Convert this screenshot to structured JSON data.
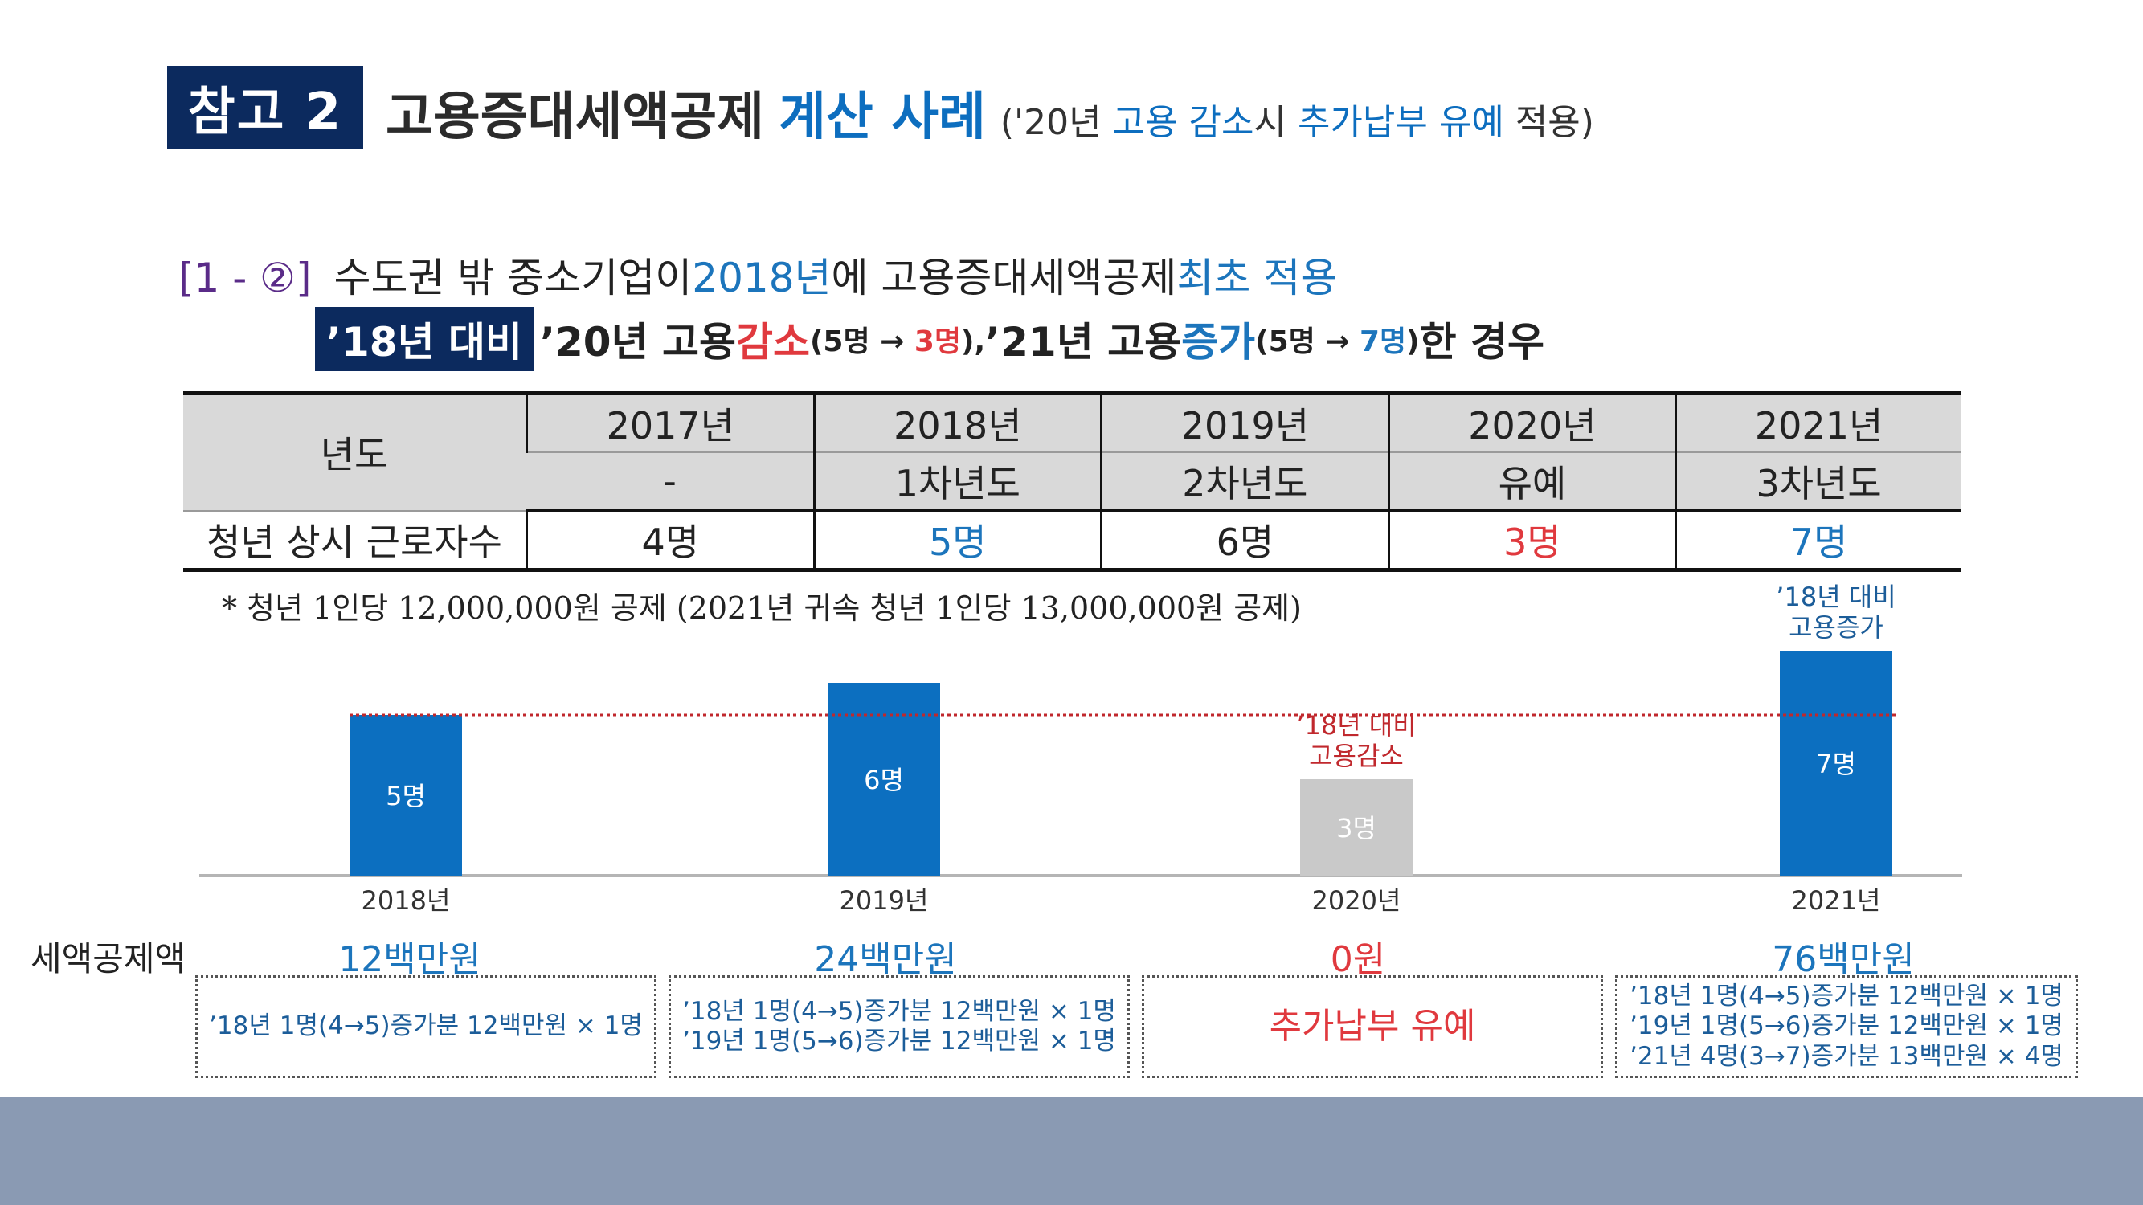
{
  "title": {
    "badge": "참고 2",
    "main": "고용증대세액공제",
    "highlight": "계산 사례",
    "sub_open": "('20년 ",
    "sub_blue1": "고용 감소",
    "sub_mid": "시 ",
    "sub_blue2": "추가납부 유예",
    "sub_close": " 적용)"
  },
  "case": {
    "num": "[1 - ②]",
    "t1": "수도권 밖 중소기업이 ",
    "year": "2018년",
    "t2": "에 고용증대세액공제 ",
    "first": "최초 적용"
  },
  "condition": {
    "badge": "’18년 대비",
    "t1": "’20년 고용 ",
    "dec": "감소",
    "dec_detail_a": "(5명 → ",
    "dec_detail_b": "3명",
    "dec_detail_c": "),",
    "t2": " ’21년 고용 ",
    "inc": "증가",
    "inc_detail_a": "(5명 → ",
    "inc_detail_b": "7명",
    "inc_detail_c": ")",
    "t3": "한 경우"
  },
  "table": {
    "label_year": "년도",
    "label_workers": "청년 상시 근로자수",
    "years": [
      "2017년",
      "2018년",
      "2019년",
      "2020년",
      "2021년"
    ],
    "stages": [
      "-",
      "1차년도",
      "2차년도",
      "유예",
      "3차년도"
    ],
    "workers": [
      "4명",
      "5명",
      "6명",
      "3명",
      "7명"
    ],
    "worker_colors": [
      "#222222",
      "#1c75bc",
      "#222222",
      "#e0393e",
      "#1c75bc"
    ]
  },
  "footnote": "* 청년 1인당 12,000,000원 공제 (2021년 귀속 청년 1인당 13,000,000원 공제)",
  "chart_data": {
    "type": "bar",
    "categories": [
      "2018년",
      "2019년",
      "2020년",
      "2021년"
    ],
    "values": [
      5,
      6,
      3,
      7
    ],
    "labels": [
      "5명",
      "6명",
      "3명",
      "7명"
    ],
    "colors": [
      "#0c6fc0",
      "#0c6fc0",
      "#c9c9c9",
      "#0c6fc0"
    ],
    "reference_line": 5,
    "reference_color": "#c0282d",
    "annotations": [
      {
        "category": "2020년",
        "lines": [
          "’18년 대비",
          "고용감소"
        ],
        "color": "#c0282d"
      },
      {
        "category": "2021년",
        "lines": [
          "’18년 대비",
          "고용증가"
        ],
        "color": "#1c5d99"
      }
    ]
  },
  "tax": {
    "label": "세액공제액",
    "amounts": [
      "12백만원",
      "24백만원",
      "0원",
      "76백만원"
    ],
    "amount_colors": [
      "#1c75bc",
      "#1c75bc",
      "#e0393e",
      "#1c75bc"
    ],
    "details": [
      [
        "’18년 1명(4→5)증가분 12백만원 × 1명"
      ],
      [
        "’18년 1명(4→5)증가분 12백만원 × 1명",
        "’19년 1명(5→6)증가분 12백만원 × 1명"
      ],
      [
        "추가납부 유예"
      ],
      [
        "’18년 1명(4→5)증가분 12백만원 × 1명",
        "’19년 1명(5→6)증가분 12백만원 × 1명",
        "’21년 4명(3→7)증가분 13백만원 × 4명"
      ]
    ]
  }
}
